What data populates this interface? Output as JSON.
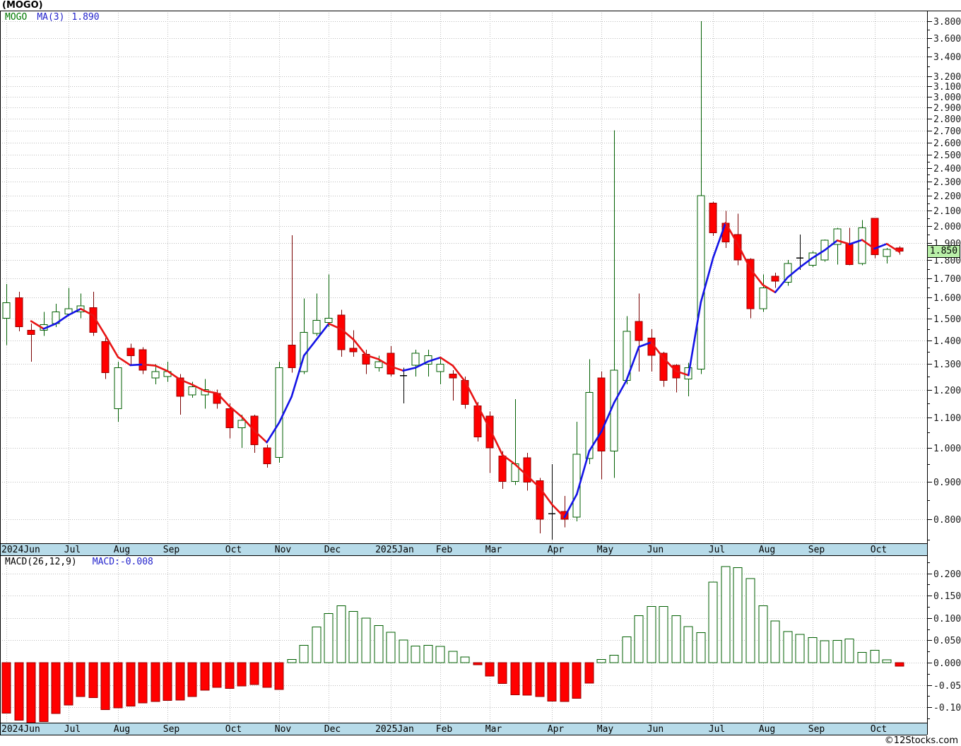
{
  "header": {
    "title": "(MOGO)"
  },
  "price_pane": {
    "legend": {
      "symbol": "MOGO",
      "ma_label": "MA(3)",
      "ma_value": "1.890"
    },
    "last_price_label": "1.850"
  },
  "macd_pane": {
    "legend_left": "MACD(26,12,9)",
    "legend_right": "MACD:-0.008"
  },
  "footer": {
    "copyright": "©12Stocks.com"
  },
  "colors": {
    "up_stroke": "#005f00",
    "down_fill": "#ff0000",
    "down_stroke": "#990000",
    "down_wick": "#7a0000",
    "doji": "#000000",
    "ma_up": "#1414e6",
    "ma_down": "#e81414",
    "grid": "#bdbdbd",
    "strip_bg": "#b7dbe9",
    "label_box_bg": "#b9f0a8",
    "axis_text": "#1a1a1a"
  },
  "chart_data": {
    "type": "candlestick+macd-histogram",
    "symbol": "MOGO",
    "timeframe": "weekly",
    "title": "(MOGO)",
    "ma_period": 3,
    "ma_last": 1.89,
    "macd_params": [
      26,
      12,
      9
    ],
    "macd_last": -0.008,
    "last_close": 1.85,
    "price_scale": "log",
    "x_months": [
      {
        "label": "2024Jun",
        "i": 0
      },
      {
        "label": "Jul",
        "i": 5
      },
      {
        "label": "Aug",
        "i": 9
      },
      {
        "label": "Sep",
        "i": 13
      },
      {
        "label": "Oct",
        "i": 18
      },
      {
        "label": "Nov",
        "i": 22
      },
      {
        "label": "Dec",
        "i": 26
      },
      {
        "label": "2025Jan",
        "i": 31
      },
      {
        "label": "Feb",
        "i": 35
      },
      {
        "label": "Mar",
        "i": 39
      },
      {
        "label": "Apr",
        "i": 44
      },
      {
        "label": "May",
        "i": 48
      },
      {
        "label": "Jun",
        "i": 52
      },
      {
        "label": "Jul",
        "i": 57
      },
      {
        "label": "Aug",
        "i": 61
      },
      {
        "label": "Sep",
        "i": 65
      },
      {
        "label": "Oct",
        "i": 70
      }
    ],
    "price_axis": {
      "labels": [
        3.8,
        3.6,
        3.4,
        3.2,
        3.1,
        3.0,
        2.9,
        2.8,
        2.7,
        2.6,
        2.5,
        2.4,
        2.3,
        2.2,
        2.1,
        2.0,
        1.9,
        1.8,
        1.7,
        1.6,
        1.5,
        1.4,
        1.3,
        1.2,
        1.1,
        1.0,
        0.9,
        0.8
      ],
      "minor_ticks": [
        3.7,
        3.5,
        3.3,
        2.45,
        2.35,
        2.25,
        2.15,
        2.05,
        1.95,
        1.85,
        1.75,
        1.65,
        1.55,
        1.45,
        1.35,
        1.25,
        1.15,
        1.05,
        0.95,
        0.85,
        0.75
      ]
    },
    "macd_axis": {
      "labels": [
        0.2,
        0.15,
        0.1,
        0.05,
        0.0,
        -0.05,
        -0.1
      ],
      "minor_ticks": [
        0.225,
        0.175,
        0.125,
        0.075,
        0.025,
        -0.025,
        -0.075,
        -0.125
      ]
    },
    "candles": [
      [
        1.5,
        1.67,
        1.38,
        1.575,
        "g"
      ],
      [
        1.6,
        1.63,
        1.44,
        1.46,
        "r"
      ],
      [
        1.445,
        1.475,
        1.31,
        1.425,
        "r"
      ],
      [
        1.445,
        1.53,
        1.42,
        1.47,
        "g"
      ],
      [
        1.475,
        1.57,
        1.46,
        1.53,
        "g"
      ],
      [
        1.52,
        1.65,
        1.51,
        1.545,
        "g"
      ],
      [
        1.53,
        1.62,
        1.5,
        1.56,
        "g"
      ],
      [
        1.55,
        1.63,
        1.42,
        1.435,
        "r"
      ],
      [
        1.395,
        1.41,
        1.24,
        1.266,
        "r"
      ],
      [
        1.13,
        1.31,
        1.085,
        1.285,
        "g"
      ],
      [
        1.365,
        1.385,
        1.3,
        1.335,
        "r"
      ],
      [
        1.36,
        1.37,
        1.26,
        1.275,
        "r"
      ],
      [
        1.245,
        1.3,
        1.22,
        1.27,
        "g"
      ],
      [
        1.25,
        1.31,
        1.23,
        1.27,
        "g"
      ],
      [
        1.245,
        1.26,
        1.11,
        1.175,
        "r"
      ],
      [
        1.18,
        1.23,
        1.17,
        1.21,
        "g"
      ],
      [
        1.18,
        1.24,
        1.13,
        1.2,
        "g"
      ],
      [
        1.185,
        1.2,
        1.13,
        1.15,
        "r"
      ],
      [
        1.13,
        1.15,
        1.03,
        1.065,
        "r"
      ],
      [
        1.065,
        1.11,
        1.0,
        1.09,
        "g"
      ],
      [
        1.105,
        1.11,
        0.985,
        1.01,
        "r"
      ],
      [
        1.0,
        1.01,
        0.94,
        0.952,
        "r"
      ],
      [
        0.97,
        1.31,
        0.955,
        1.285,
        "g"
      ],
      [
        1.38,
        1.945,
        1.265,
        1.285,
        "r"
      ],
      [
        1.27,
        1.595,
        1.26,
        1.435,
        "g"
      ],
      [
        1.43,
        1.62,
        1.42,
        1.49,
        "g"
      ],
      [
        1.48,
        1.72,
        1.46,
        1.5,
        "g"
      ],
      [
        1.515,
        1.54,
        1.33,
        1.36,
        "r"
      ],
      [
        1.365,
        1.445,
        1.33,
        1.35,
        "r"
      ],
      [
        1.34,
        1.36,
        1.26,
        1.3,
        "r"
      ],
      [
        1.285,
        1.335,
        1.27,
        1.31,
        "g"
      ],
      [
        1.345,
        1.375,
        1.25,
        1.26,
        "r"
      ],
      [
        1.255,
        1.285,
        1.15,
        1.25,
        "k"
      ],
      [
        1.295,
        1.36,
        1.25,
        1.345,
        "g"
      ],
      [
        1.3,
        1.36,
        1.25,
        1.335,
        "g"
      ],
      [
        1.27,
        1.33,
        1.22,
        1.3,
        "g"
      ],
      [
        1.26,
        1.275,
        1.16,
        1.245,
        "r"
      ],
      [
        1.235,
        1.25,
        1.13,
        1.145,
        "r"
      ],
      [
        1.14,
        1.155,
        1.02,
        1.035,
        "r"
      ],
      [
        1.105,
        1.12,
        0.925,
        1.0,
        "r"
      ],
      [
        0.975,
        0.99,
        0.88,
        0.9,
        "r"
      ],
      [
        0.9,
        1.165,
        0.89,
        0.952,
        "g"
      ],
      [
        0.97,
        0.985,
        0.875,
        0.898,
        "r"
      ],
      [
        0.902,
        0.91,
        0.765,
        0.8,
        "r"
      ],
      [
        0.81,
        0.95,
        0.75,
        0.815,
        "k"
      ],
      [
        0.82,
        0.86,
        0.78,
        0.8,
        "r"
      ],
      [
        0.805,
        1.085,
        0.795,
        0.98,
        "g"
      ],
      [
        0.967,
        1.32,
        0.95,
        1.19,
        "g"
      ],
      [
        1.245,
        1.27,
        0.906,
        0.99,
        "r"
      ],
      [
        0.99,
        2.7,
        0.91,
        1.275,
        "g"
      ],
      [
        1.235,
        1.51,
        1.22,
        1.44,
        "g"
      ],
      [
        1.485,
        1.62,
        1.27,
        1.4,
        "r"
      ],
      [
        1.41,
        1.45,
        1.27,
        1.335,
        "r"
      ],
      [
        1.345,
        1.35,
        1.21,
        1.235,
        "r"
      ],
      [
        1.295,
        1.3,
        1.19,
        1.245,
        "r"
      ],
      [
        1.24,
        1.305,
        1.175,
        1.285,
        "g"
      ],
      [
        1.28,
        3.8,
        1.26,
        2.2,
        "g"
      ],
      [
        2.15,
        2.16,
        1.94,
        1.96,
        "r"
      ],
      [
        2.02,
        2.1,
        1.87,
        1.905,
        "r"
      ],
      [
        1.95,
        2.08,
        1.77,
        1.8,
        "r"
      ],
      [
        1.805,
        1.81,
        1.5,
        1.545,
        "r"
      ],
      [
        1.545,
        1.72,
        1.53,
        1.65,
        "g"
      ],
      [
        1.71,
        1.73,
        1.65,
        1.685,
        "r"
      ],
      [
        1.68,
        1.8,
        1.66,
        1.78,
        "g"
      ],
      [
        1.81,
        1.95,
        1.745,
        1.815,
        "k"
      ],
      [
        1.77,
        1.85,
        1.76,
        1.84,
        "g"
      ],
      [
        1.8,
        1.92,
        1.79,
        1.915,
        "g"
      ],
      [
        1.89,
        1.99,
        1.775,
        1.985,
        "g"
      ],
      [
        1.895,
        1.99,
        1.77,
        1.775,
        "r"
      ],
      [
        1.78,
        2.04,
        1.77,
        1.99,
        "g"
      ],
      [
        2.05,
        2.05,
        1.81,
        1.83,
        "r"
      ],
      [
        1.82,
        1.87,
        1.78,
        1.86,
        "g"
      ],
      [
        1.87,
        1.88,
        1.83,
        1.85,
        "r"
      ]
    ],
    "macd_histogram": [
      -0.113,
      -0.129,
      -0.138,
      -0.132,
      -0.114,
      -0.095,
      -0.076,
      -0.078,
      -0.105,
      -0.101,
      -0.097,
      -0.09,
      -0.087,
      -0.085,
      -0.084,
      -0.076,
      -0.062,
      -0.055,
      -0.058,
      -0.052,
      -0.049,
      -0.055,
      -0.06,
      0.007,
      0.039,
      0.08,
      0.11,
      0.127,
      0.115,
      0.1,
      0.083,
      0.068,
      0.051,
      0.037,
      0.039,
      0.036,
      0.025,
      0.013,
      -0.005,
      -0.03,
      -0.047,
      -0.072,
      -0.073,
      -0.076,
      -0.086,
      -0.087,
      -0.08,
      -0.046,
      0.007,
      0.017,
      0.058,
      0.105,
      0.126,
      0.126,
      0.105,
      0.081,
      0.067,
      0.18,
      0.215,
      0.213,
      0.188,
      0.127,
      0.093,
      0.07,
      0.063,
      0.056,
      0.049,
      0.05,
      0.053,
      0.023,
      0.028,
      0.006,
      -0.008
    ]
  }
}
